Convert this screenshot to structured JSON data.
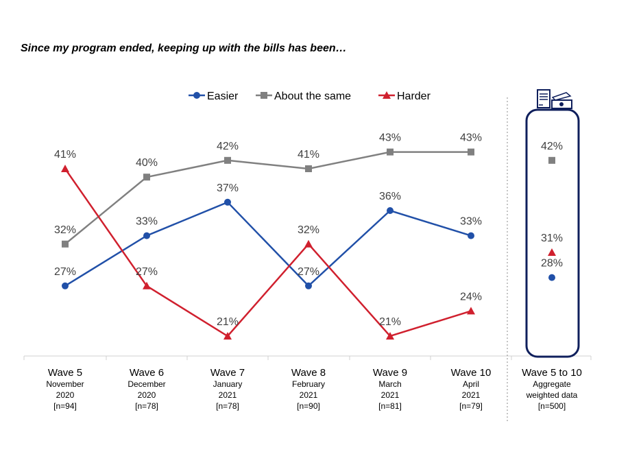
{
  "chart_data": {
    "type": "line",
    "title": "Since my program ended, keeping up with the bills has been…",
    "legend_position": "top",
    "grid": false,
    "categories": [
      {
        "wave": "Wave 5",
        "lines": [
          "November",
          "2020",
          "[n=94]"
        ]
      },
      {
        "wave": "Wave 6",
        "lines": [
          "December",
          "2020",
          "[n=78]"
        ]
      },
      {
        "wave": "Wave 7",
        "lines": [
          "January",
          "2021",
          "[n=78]"
        ]
      },
      {
        "wave": "Wave 8",
        "lines": [
          "February",
          "2021",
          "[n=90]"
        ]
      },
      {
        "wave": "Wave 9",
        "lines": [
          "March",
          "2021",
          "[n=81]"
        ]
      },
      {
        "wave": "Wave 10",
        "lines": [
          "April",
          "2021",
          "[n=79]"
        ]
      }
    ],
    "aggregate_category": {
      "wave": "Wave 5 to 10",
      "lines": [
        "Aggregate",
        "weighted data",
        "[n=500]"
      ]
    },
    "series": [
      {
        "name": "Easier",
        "color": "#2150A8",
        "marker": "circle",
        "values": [
          27,
          33,
          37,
          27,
          36,
          33
        ],
        "aggregate": 28
      },
      {
        "name": "About the same",
        "color": "#808080",
        "marker": "square",
        "values": [
          32,
          40,
          42,
          41,
          43,
          43
        ],
        "aggregate": 42
      },
      {
        "name": "Harder",
        "color": "#D0202E",
        "marker": "triangle",
        "values": [
          41,
          27,
          21,
          32,
          21,
          24
        ],
        "aggregate": 31
      }
    ],
    "value_suffix": "%",
    "aggregate_box_color": "#0F1F5C",
    "aggregate_icon": "bills-and-money-icon"
  }
}
